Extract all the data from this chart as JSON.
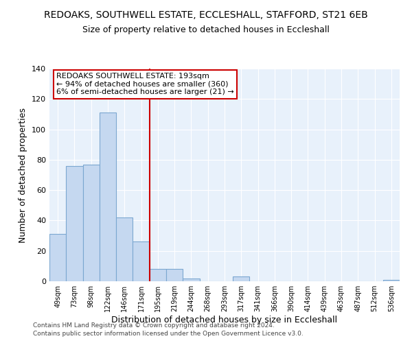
{
  "title": "REDOAKS, SOUTHWELL ESTATE, ECCLESHALL, STAFFORD, ST21 6EB",
  "subtitle": "Size of property relative to detached houses in Eccleshall",
  "xlabel": "Distribution of detached houses by size in Eccleshall",
  "ylabel": "Number of detached properties",
  "categories": [
    "49sqm",
    "73sqm",
    "98sqm",
    "122sqm",
    "146sqm",
    "171sqm",
    "195sqm",
    "219sqm",
    "244sqm",
    "268sqm",
    "293sqm",
    "317sqm",
    "341sqm",
    "366sqm",
    "390sqm",
    "414sqm",
    "439sqm",
    "463sqm",
    "487sqm",
    "512sqm",
    "536sqm"
  ],
  "values": [
    31,
    76,
    77,
    111,
    42,
    26,
    8,
    8,
    2,
    0,
    0,
    3,
    0,
    0,
    0,
    0,
    0,
    0,
    0,
    0,
    1
  ],
  "bar_color": "#c5d8f0",
  "bar_edge_color": "#7ba7d0",
  "vline_color": "#cc0000",
  "vline_pos": 5.5,
  "annotation_text": "REDOAKS SOUTHWELL ESTATE: 193sqm\n← 94% of detached houses are smaller (360)\n6% of semi-detached houses are larger (21) →",
  "annotation_box_color": "white",
  "annotation_box_edge_color": "#cc0000",
  "ylim": [
    0,
    140
  ],
  "yticks": [
    0,
    20,
    40,
    60,
    80,
    100,
    120,
    140
  ],
  "footer_line1": "Contains HM Land Registry data © Crown copyright and database right 2024.",
  "footer_line2": "Contains public sector information licensed under the Open Government Licence v3.0.",
  "plot_bg_color": "#e8f1fb",
  "fig_bg_color": "#ffffff",
  "title_fontsize": 10,
  "subtitle_fontsize": 9,
  "xlabel_fontsize": 9,
  "ylabel_fontsize": 9,
  "footer_fontsize": 6.5
}
